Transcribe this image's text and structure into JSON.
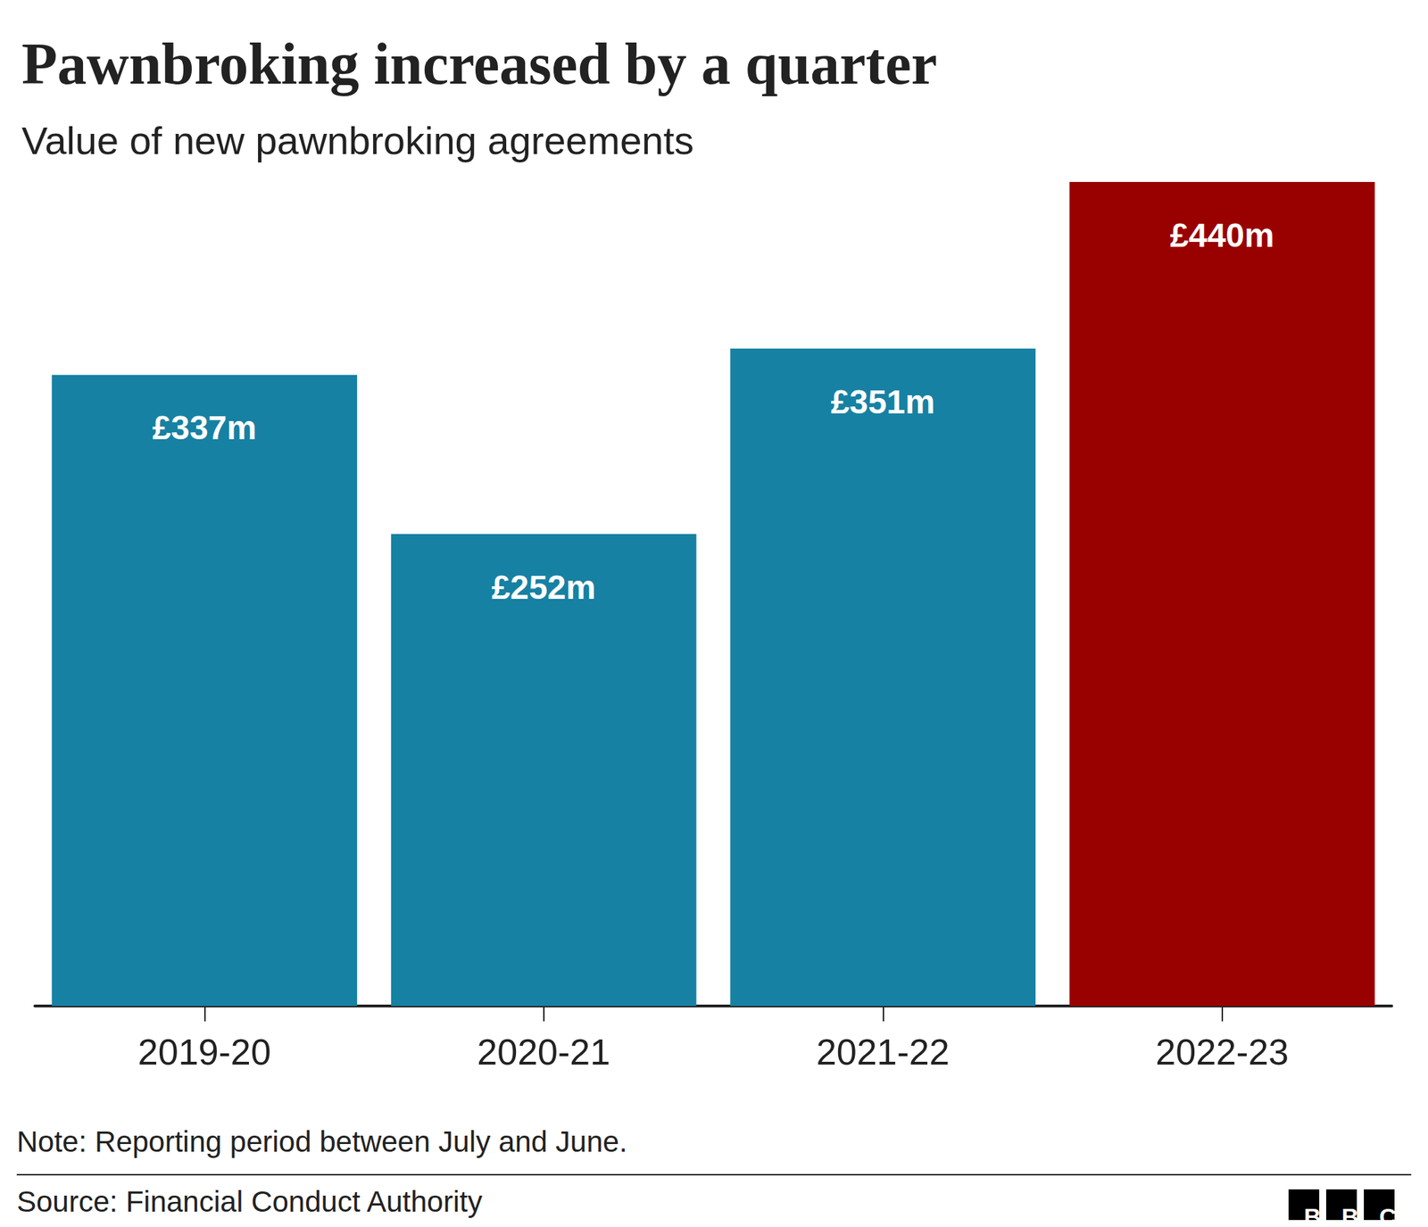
{
  "chart_data": {
    "type": "bar",
    "title": "Pawnbroking increased by a quarter",
    "subtitle": "Value of new pawnbroking agreements",
    "categories": [
      "2019-20",
      "2020-21",
      "2021-22",
      "2022-23"
    ],
    "values": [
      337,
      252,
      351,
      440
    ],
    "value_labels": [
      "£337m",
      "£252m",
      "£351m",
      "£440m"
    ],
    "colors": [
      "#1681a3",
      "#1681a3",
      "#1681a3",
      "#990000"
    ],
    "ylim": [
      0,
      440
    ],
    "grid": false,
    "data_labels": true,
    "tick_labels": "x",
    "note": "Note: Reporting period between July and June.",
    "source": "Source: Financial Conduct Authority",
    "source_logo": "BBC"
  }
}
